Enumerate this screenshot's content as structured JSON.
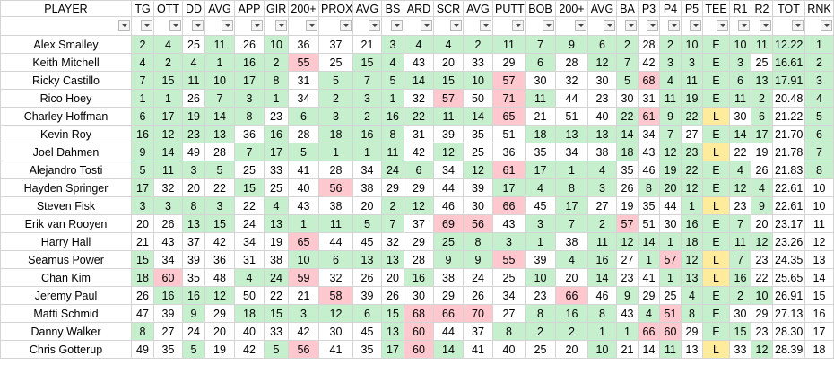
{
  "table": {
    "header": [
      "PLAYER",
      "TG",
      "OTT",
      "DD",
      "AVG",
      "APP",
      "GIR",
      "200+",
      "PROX",
      "AVG",
      "BS",
      "ARD",
      "SCR",
      "AVG",
      "PUTT",
      "BOB",
      "200+",
      "AVG",
      "BA",
      "P3",
      "P4",
      "P5",
      "TEE",
      "R1",
      "R2",
      "TOT",
      "RNK"
    ],
    "fill_colors": {
      "g": "#c6efce",
      "r": "#ffc7ce",
      "y": "#ffeb9c",
      "w": "#ffffff"
    },
    "rows": [
      {
        "player": "Alex Smalley",
        "cells": [
          "2",
          "4",
          "25",
          "11",
          "26",
          "10",
          "36",
          "37",
          "21",
          "3",
          "4",
          "4",
          "2",
          "11",
          "7",
          "9",
          "6",
          "2",
          "28",
          "2",
          "10",
          "E",
          "10",
          "11",
          "12.22",
          "1"
        ],
        "fill": "ggwgwgwwwgggggggggwggggggg"
      },
      {
        "player": "Keith Mitchell",
        "cells": [
          "4",
          "2",
          "4",
          "1",
          "16",
          "2",
          "55",
          "25",
          "15",
          "4",
          "43",
          "20",
          "33",
          "29",
          "6",
          "28",
          "12",
          "7",
          "42",
          "3",
          "3",
          "E",
          "3",
          "25",
          "16.61",
          "2"
        ],
        "fill": "ggggggrwggwwwwgwggwggggwgg"
      },
      {
        "player": "Ricky Castillo",
        "cells": [
          "7",
          "15",
          "11",
          "10",
          "17",
          "8",
          "31",
          "5",
          "7",
          "5",
          "14",
          "15",
          "10",
          "57",
          "30",
          "32",
          "30",
          "5",
          "68",
          "4",
          "11",
          "E",
          "6",
          "13",
          "17.91",
          "3"
        ],
        "fill": "ggggggwggggggrwwwgrggggggg"
      },
      {
        "player": "Rico Hoey",
        "cells": [
          "1",
          "1",
          "26",
          "7",
          "3",
          "1",
          "34",
          "2",
          "3",
          "1",
          "32",
          "57",
          "50",
          "71",
          "11",
          "44",
          "23",
          "30",
          "31",
          "11",
          "19",
          "E",
          "11",
          "2",
          "20.48",
          "4"
        ],
        "fill": "ggwgggwgggwrwrgwwwwgggggwg"
      },
      {
        "player": "Charley Hoffman",
        "cells": [
          "6",
          "17",
          "19",
          "14",
          "8",
          "23",
          "6",
          "3",
          "2",
          "16",
          "22",
          "11",
          "14",
          "65",
          "21",
          "51",
          "40",
          "22",
          "61",
          "9",
          "22",
          "L",
          "30",
          "6",
          "21.22",
          "5"
        ],
        "fill": "gggggwgggggggrwwwgrggywgwg"
      },
      {
        "player": "Kevin Roy",
        "cells": [
          "16",
          "12",
          "23",
          "13",
          "36",
          "16",
          "28",
          "18",
          "16",
          "8",
          "31",
          "39",
          "35",
          "51",
          "18",
          "13",
          "13",
          "14",
          "34",
          "7",
          "27",
          "E",
          "14",
          "17",
          "21.70",
          "6"
        ],
        "fill": "ggggwgwgggwwwwggggwgwgggwg"
      },
      {
        "player": "Joel Dahmen",
        "cells": [
          "9",
          "14",
          "49",
          "28",
          "7",
          "17",
          "5",
          "1",
          "1",
          "11",
          "42",
          "12",
          "25",
          "36",
          "35",
          "34",
          "38",
          "18",
          "43",
          "12",
          "23",
          "L",
          "22",
          "19",
          "21.78",
          "7"
        ],
        "fill": "ggwwggggggwgwwwwwgwggywwwg"
      },
      {
        "player": "Alejandro Tosti",
        "cells": [
          "5",
          "11",
          "3",
          "5",
          "25",
          "33",
          "41",
          "28",
          "34",
          "24",
          "6",
          "34",
          "12",
          "61",
          "17",
          "1",
          "4",
          "35",
          "46",
          "19",
          "22",
          "E",
          "4",
          "26",
          "21.83",
          "8"
        ],
        "fill": "ggggwwwwwggwgrgggwwggggwwg"
      },
      {
        "player": "Hayden Springer",
        "cells": [
          "17",
          "32",
          "20",
          "22",
          "15",
          "25",
          "40",
          "56",
          "38",
          "29",
          "29",
          "44",
          "39",
          "17",
          "4",
          "8",
          "3",
          "26",
          "8",
          "20",
          "12",
          "E",
          "12",
          "4",
          "22.61",
          "10"
        ],
        "fill": "gwwwgwwrwwwwwggggwggggggww"
      },
      {
        "player": "Steven Fisk",
        "cells": [
          "3",
          "3",
          "8",
          "3",
          "22",
          "4",
          "43",
          "38",
          "20",
          "2",
          "12",
          "46",
          "30",
          "66",
          "45",
          "17",
          "27",
          "19",
          "35",
          "44",
          "1",
          "L",
          "23",
          "9",
          "22.61",
          "10"
        ],
        "fill": "ggggwgwwwggwwrwgwwwwgywgww"
      },
      {
        "player": "Erik van Rooyen",
        "cells": [
          "20",
          "26",
          "13",
          "15",
          "24",
          "13",
          "1",
          "11",
          "5",
          "7",
          "37",
          "69",
          "56",
          "43",
          "3",
          "7",
          "2",
          "57",
          "51",
          "30",
          "16",
          "E",
          "7",
          "20",
          "23.17",
          "11"
        ],
        "fill": "wwggwgggggwrrwgggrwwgggwww"
      },
      {
        "player": "Harry Hall",
        "cells": [
          "21",
          "43",
          "37",
          "42",
          "34",
          "19",
          "65",
          "44",
          "45",
          "32",
          "29",
          "25",
          "8",
          "3",
          "1",
          "38",
          "11",
          "12",
          "14",
          "1",
          "18",
          "E",
          "11",
          "12",
          "23.26",
          "12"
        ],
        "fill": "wwwwwwrwwwwggggwggggggggww"
      },
      {
        "player": "Seamus Power",
        "cells": [
          "15",
          "34",
          "39",
          "36",
          "31",
          "38",
          "10",
          "6",
          "13",
          "13",
          "28",
          "9",
          "9",
          "55",
          "39",
          "4",
          "16",
          "27",
          "1",
          "57",
          "12",
          "L",
          "7",
          "23",
          "24.35",
          "13"
        ],
        "fill": "gwwwwwggggwggrwggwgrgygwww"
      },
      {
        "player": "Chan Kim",
        "cells": [
          "18",
          "60",
          "35",
          "48",
          "4",
          "24",
          "59",
          "32",
          "26",
          "20",
          "16",
          "38",
          "24",
          "25",
          "10",
          "20",
          "14",
          "23",
          "41",
          "1",
          "13",
          "L",
          "16",
          "22",
          "25.65",
          "14"
        ],
        "fill": "grwwggrwwwgwwwgwgwwggygwww"
      },
      {
        "player": "Jeremy Paul",
        "cells": [
          "26",
          "16",
          "16",
          "12",
          "50",
          "22",
          "21",
          "58",
          "39",
          "26",
          "30",
          "29",
          "26",
          "34",
          "23",
          "66",
          "46",
          "9",
          "29",
          "25",
          "4",
          "E",
          "2",
          "10",
          "26.91",
          "15"
        ],
        "fill": "wgggwwwrwwwwwwwrwgwwggggww"
      },
      {
        "player": "Matti Schmid",
        "cells": [
          "47",
          "39",
          "9",
          "29",
          "18",
          "15",
          "3",
          "12",
          "6",
          "15",
          "68",
          "66",
          "70",
          "27",
          "8",
          "16",
          "8",
          "43",
          "4",
          "51",
          "8",
          "E",
          "30",
          "29",
          "27.13",
          "16"
        ],
        "fill": "wwgwggggggrrrwgggwgrggwwww"
      },
      {
        "player": "Danny Walker",
        "cells": [
          "8",
          "27",
          "24",
          "20",
          "40",
          "33",
          "42",
          "30",
          "45",
          "13",
          "60",
          "44",
          "37",
          "8",
          "2",
          "2",
          "1",
          "1",
          "66",
          "60",
          "29",
          "E",
          "15",
          "23",
          "28.30",
          "17"
        ],
        "fill": "gwwwwwwwwgrwwgggggrrwggwww"
      },
      {
        "player": "Chris Gotterup",
        "cells": [
          "49",
          "35",
          "5",
          "19",
          "42",
          "5",
          "56",
          "41",
          "35",
          "17",
          "60",
          "14",
          "41",
          "40",
          "25",
          "20",
          "10",
          "21",
          "14",
          "11",
          "13",
          "L",
          "33",
          "12",
          "28.39",
          "18"
        ],
        "fill": "wwgwwgrwwgrgwwwwgwwgwywgww"
      }
    ]
  }
}
